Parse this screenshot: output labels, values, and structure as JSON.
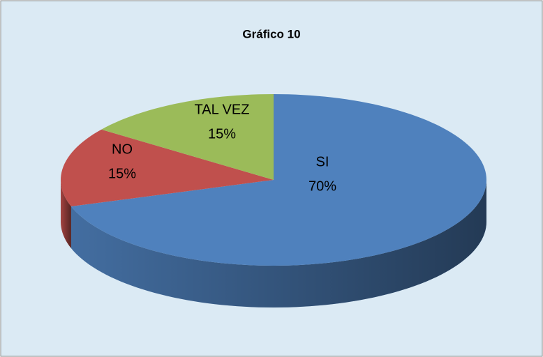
{
  "chart_data": {
    "type": "pie",
    "title": "Gráfico 10",
    "categories": [
      "SI",
      "NO",
      "TAL VEZ"
    ],
    "values": [
      70,
      15,
      15
    ],
    "value_labels": [
      "70%",
      "15%",
      "15%"
    ],
    "colors": [
      "#4f81bd",
      "#c0504d",
      "#9bbb59"
    ]
  }
}
